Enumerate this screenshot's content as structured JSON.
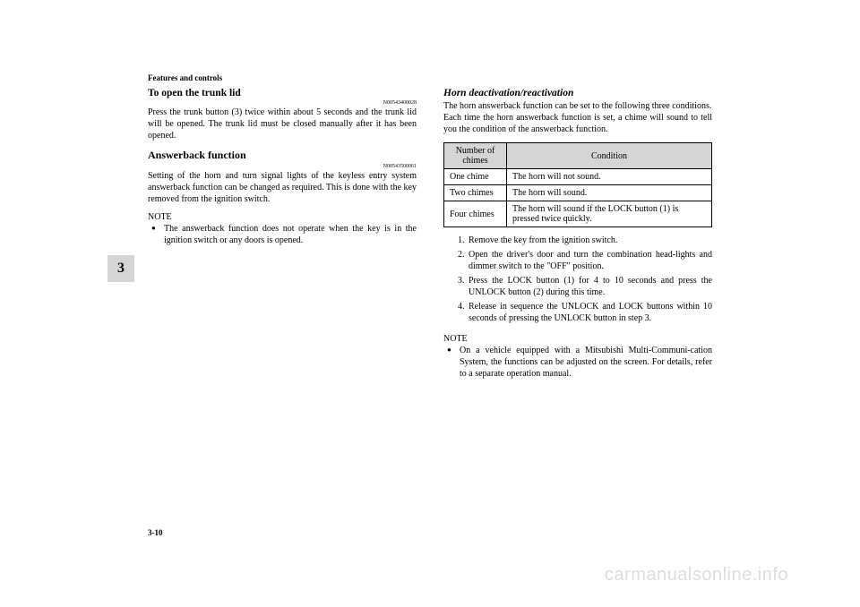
{
  "header": "Features and controls",
  "tab": "3",
  "page_num": "3-10",
  "watermark": "carmanualsonline.info",
  "left": {
    "s1_title": "To open the trunk lid",
    "s1_ref": "N00543400028",
    "s1_body": "Press the trunk button (3) twice within about 5 seconds and the trunk lid will be opened. The trunk lid must be closed manually after it has been opened.",
    "s2_title": "Answerback function",
    "s2_ref": "N00543500061",
    "s2_body": "Setting of the horn and turn signal lights of the keyless entry system answerback function can be changed as required. This is done with the key removed from the ignition switch.",
    "note_label": "NOTE",
    "note_item": "The answerback function does not operate when the key is in the ignition switch or any doors is opened."
  },
  "right": {
    "s1_title": "Horn deactivation/reactivation",
    "s1_body1": "The horn answerback function can be set to the following three conditions.",
    "s1_body2": "Each time the horn answerback function is set, a chime will sound to tell you the condition of the answerback function.",
    "table": {
      "header_col1": "Number of chimes",
      "header_col2": "Condition",
      "row1_col1": "One chime",
      "row1_col2": "The horn will not sound.",
      "row2_col1": "Two chimes",
      "row2_col2": "The horn will sound.",
      "row3_col1": "Four chimes",
      "row3_col2": "The horn will sound if the LOCK button (1) is pressed twice quickly."
    },
    "steps": {
      "s1": "Remove the key from the ignition switch.",
      "s2": "Open the driver's door and turn the combination head-lights and dimmer switch to the \"OFF\" position.",
      "s3": "Press the LOCK button (1) for 4 to 10 seconds and press the UNLOCK button (2) during this time.",
      "s4": "Release in sequence the UNLOCK and LOCK buttons within 10 seconds of pressing the UNLOCK button in step 3."
    },
    "note_label": "NOTE",
    "note_item": "On a vehicle equipped with a Mitsubishi Multi-Communi-cation System, the functions can be adjusted on the screen. For details, refer to a separate operation manual."
  }
}
